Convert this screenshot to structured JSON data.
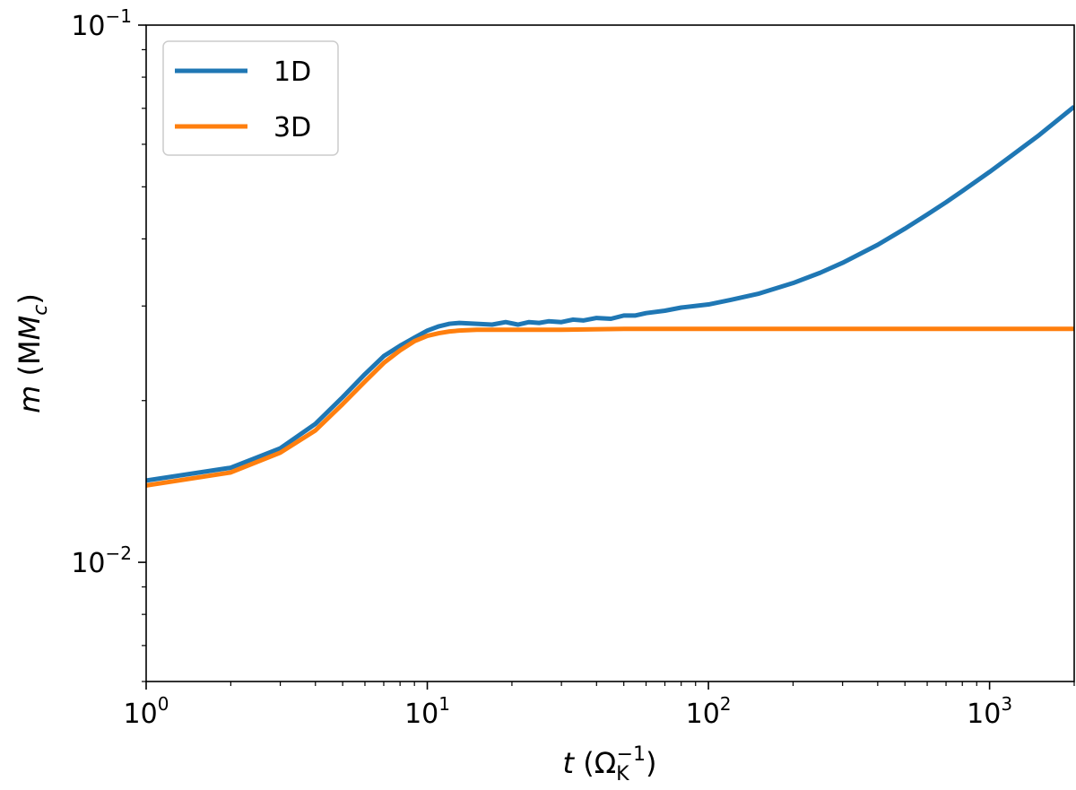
{
  "chart_data": {
    "type": "line",
    "xscale": "log",
    "yscale": "log",
    "xlim": [
      1,
      2000
    ],
    "ylim": [
      0.006,
      0.1
    ],
    "grid": false,
    "legend_position": "top-left",
    "xlabel": {
      "var": "t",
      "open": " (Ω",
      "sub": "K",
      "sup": "−1",
      "close": ")"
    },
    "ylabel": {
      "var": "m",
      "open": " (M",
      "sub": "c",
      "close": ")"
    },
    "x_ticks": [
      {
        "base": "10",
        "exp": "0",
        "value": 1
      },
      {
        "base": "10",
        "exp": "1",
        "value": 10
      },
      {
        "base": "10",
        "exp": "2",
        "value": 100
      },
      {
        "base": "10",
        "exp": "3",
        "value": 1000
      }
    ],
    "y_ticks": [
      {
        "base": "10",
        "exp": "−2",
        "value": 0.01
      },
      {
        "base": "10",
        "exp": "−1",
        "value": 0.1
      }
    ],
    "series": [
      {
        "name": "1D",
        "color": "#1f77b4",
        "x": [
          1,
          2,
          3,
          4,
          5,
          6,
          7,
          8,
          9,
          10,
          11,
          12,
          13,
          15,
          17,
          19,
          21,
          23,
          25,
          27,
          30,
          33,
          36,
          40,
          45,
          50,
          55,
          60,
          70,
          80,
          100,
          120,
          150,
          200,
          250,
          300,
          400,
          500,
          600,
          700,
          800,
          1000,
          1200,
          1500,
          2000
        ],
        "y": [
          0.0142,
          0.015,
          0.0163,
          0.0181,
          0.0203,
          0.0224,
          0.0242,
          0.0253,
          0.0262,
          0.027,
          0.0275,
          0.0278,
          0.0279,
          0.0278,
          0.0277,
          0.028,
          0.0277,
          0.028,
          0.0279,
          0.0281,
          0.028,
          0.0283,
          0.0282,
          0.0285,
          0.0284,
          0.0288,
          0.0288,
          0.0291,
          0.0294,
          0.0298,
          0.0302,
          0.0308,
          0.0316,
          0.0331,
          0.0346,
          0.0361,
          0.039,
          0.0418,
          0.0444,
          0.0468,
          0.0491,
          0.0533,
          0.0572,
          0.0624,
          0.0705
        ]
      },
      {
        "name": "3D",
        "color": "#ff7f0e",
        "x": [
          1,
          2,
          3,
          4,
          5,
          6,
          7,
          8,
          9,
          10,
          11,
          12,
          13,
          15,
          20,
          30,
          50,
          100,
          200,
          500,
          1000,
          2000
        ],
        "y": [
          0.0139,
          0.0147,
          0.016,
          0.0176,
          0.0197,
          0.0217,
          0.0235,
          0.0248,
          0.0258,
          0.0264,
          0.0267,
          0.0269,
          0.027,
          0.0271,
          0.0271,
          0.0271,
          0.0272,
          0.0272,
          0.0272,
          0.0272,
          0.0272,
          0.0272
        ]
      }
    ]
  }
}
